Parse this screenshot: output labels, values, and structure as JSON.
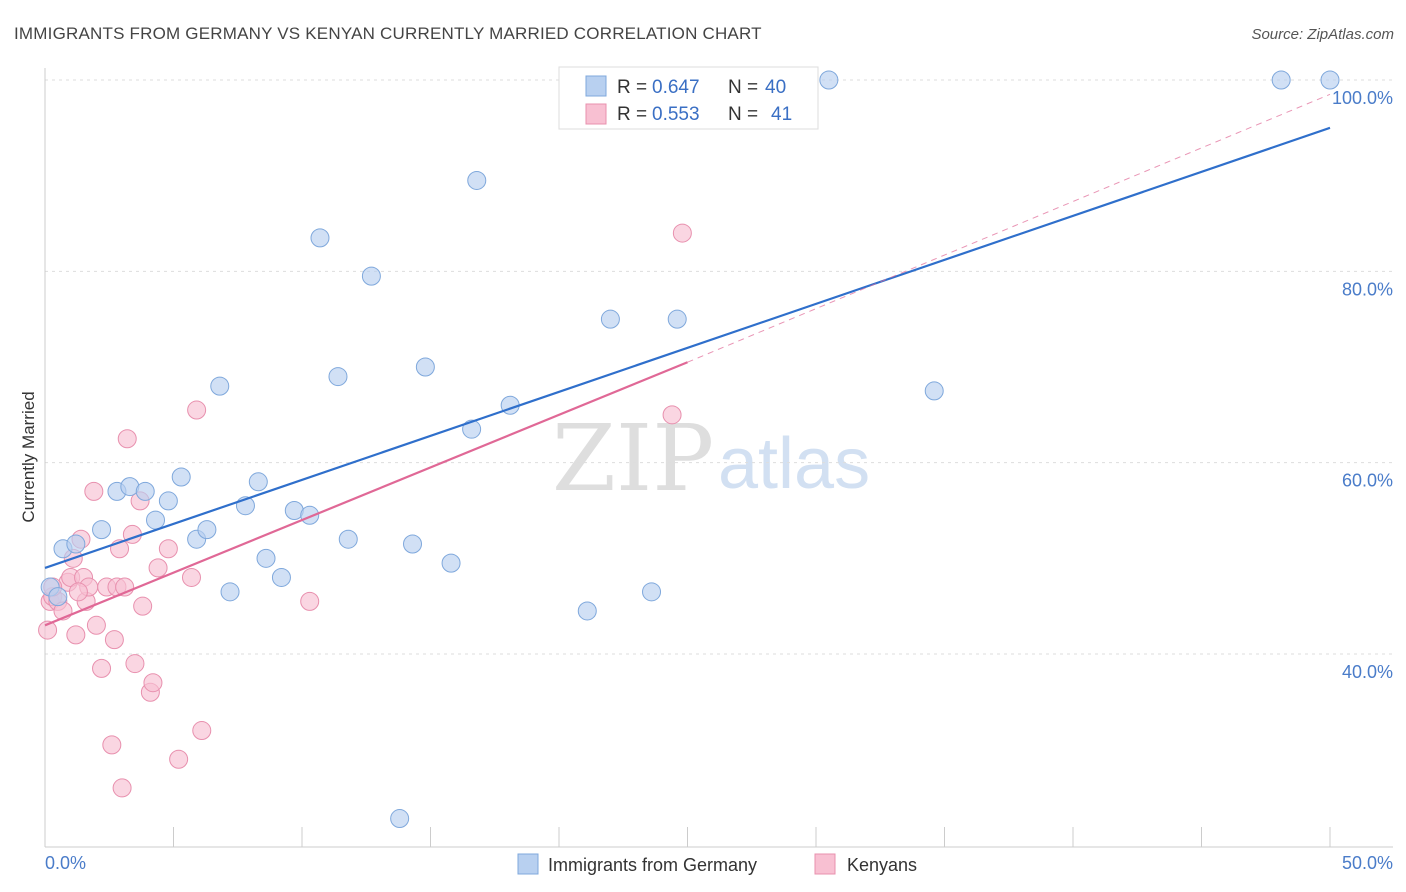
{
  "header": {
    "title": "IMMIGRANTS FROM GERMANY VS KENYAN CURRENTLY MARRIED CORRELATION CHART",
    "source": "Source: ZipAtlas.com"
  },
  "watermark": {
    "part1": "ZIP",
    "part2": "atlas"
  },
  "legend": {
    "rows": [
      {
        "r_label": "R =",
        "r_value": "0.647",
        "n_label": "N =",
        "n_value": "40"
      },
      {
        "r_label": "R =",
        "r_value": "0.553",
        "n_label": "N =",
        "n_value": "41"
      }
    ]
  },
  "colors": {
    "germany_fill": "#b8d0f0",
    "germany_stroke": "#7fa8dc",
    "germany_line": "#2f6fcb",
    "kenyan_fill": "#f8c0d2",
    "kenyan_stroke": "#e890ae",
    "kenyan_line": "#e06896",
    "grid": "#dddddd",
    "axis": "#cccccc"
  },
  "chart_data": {
    "type": "scatter",
    "title": "IMMIGRANTS FROM GERMANY VS KENYAN CURRENTLY MARRIED CORRELATION CHART",
    "xlabel": "",
    "ylabel": "Currently Married",
    "xlim": [
      0,
      50
    ],
    "ylim": [
      21,
      102
    ],
    "x_tick_labels": [
      "0.0%",
      "50.0%"
    ],
    "y_ticks": [
      40,
      60,
      80,
      100
    ],
    "y_tick_labels": [
      "40.0%",
      "60.0%",
      "80.0%",
      "100.0%"
    ],
    "grid": true,
    "legend_position": "top-center",
    "series": [
      {
        "name": "Immigrants from Germany",
        "R": 0.647,
        "N": 40,
        "points": [
          [
            0.2,
            47.0
          ],
          [
            0.5,
            46.0
          ],
          [
            0.7,
            51.0
          ],
          [
            1.2,
            51.5
          ],
          [
            2.2,
            53.0
          ],
          [
            2.8,
            57.0
          ],
          [
            3.3,
            57.5
          ],
          [
            3.9,
            57.0
          ],
          [
            4.3,
            54.0
          ],
          [
            4.8,
            56.0
          ],
          [
            5.3,
            58.5
          ],
          [
            5.9,
            52.0
          ],
          [
            6.3,
            53.0
          ],
          [
            6.8,
            68.0
          ],
          [
            7.2,
            46.5
          ],
          [
            7.8,
            55.5
          ],
          [
            8.3,
            58.0
          ],
          [
            8.6,
            50.0
          ],
          [
            9.2,
            48.0
          ],
          [
            9.7,
            55.0
          ],
          [
            10.3,
            54.5
          ],
          [
            10.7,
            83.5
          ],
          [
            11.4,
            69.0
          ],
          [
            11.8,
            52.0
          ],
          [
            12.7,
            79.5
          ],
          [
            13.8,
            22.8
          ],
          [
            14.3,
            51.5
          ],
          [
            14.8,
            70.0
          ],
          [
            15.8,
            49.5
          ],
          [
            16.6,
            63.5
          ],
          [
            16.8,
            89.5
          ],
          [
            18.1,
            66.0
          ],
          [
            21.1,
            44.5
          ],
          [
            22.0,
            75.0
          ],
          [
            23.6,
            46.5
          ],
          [
            24.6,
            75.0
          ],
          [
            30.5,
            100.0
          ],
          [
            34.6,
            67.5
          ],
          [
            48.1,
            100.0
          ],
          [
            50.0,
            100.0
          ]
        ],
        "trend": {
          "x": [
            0,
            50
          ],
          "y": [
            49.0,
            95.0
          ]
        }
      },
      {
        "name": "Kenyans",
        "R": 0.553,
        "N": 41,
        "points": [
          [
            0.1,
            42.5
          ],
          [
            0.2,
            45.5
          ],
          [
            0.3,
            46.0
          ],
          [
            0.5,
            45.5
          ],
          [
            0.7,
            44.5
          ],
          [
            0.9,
            47.5
          ],
          [
            1.0,
            48.0
          ],
          [
            1.1,
            50.0
          ],
          [
            1.2,
            42.0
          ],
          [
            1.4,
            52.0
          ],
          [
            1.5,
            48.0
          ],
          [
            1.6,
            45.5
          ],
          [
            1.7,
            47.0
          ],
          [
            1.9,
            57.0
          ],
          [
            2.0,
            43.0
          ],
          [
            2.2,
            38.5
          ],
          [
            2.4,
            47.0
          ],
          [
            2.6,
            30.5
          ],
          [
            2.7,
            41.5
          ],
          [
            2.8,
            47.0
          ],
          [
            2.9,
            51.0
          ],
          [
            3.0,
            26.0
          ],
          [
            3.1,
            47.0
          ],
          [
            3.2,
            62.5
          ],
          [
            3.4,
            52.5
          ],
          [
            3.5,
            39.0
          ],
          [
            3.7,
            56.0
          ],
          [
            3.8,
            45.0
          ],
          [
            4.1,
            36.0
          ],
          [
            4.2,
            37.0
          ],
          [
            4.4,
            49.0
          ],
          [
            4.8,
            51.0
          ],
          [
            5.2,
            29.0
          ],
          [
            5.7,
            48.0
          ],
          [
            5.9,
            65.5
          ],
          [
            6.1,
            32.0
          ],
          [
            10.3,
            45.5
          ],
          [
            24.4,
            65.0
          ],
          [
            24.8,
            84.0
          ],
          [
            0.3,
            47.0
          ],
          [
            1.3,
            46.5
          ]
        ],
        "trend": {
          "x": [
            0,
            25
          ],
          "y": [
            43.0,
            70.5
          ]
        },
        "trend_extension": {
          "x": [
            25,
            50
          ],
          "y": [
            70.5,
            98.5
          ]
        }
      }
    ]
  },
  "bottom_legend": {
    "items": [
      {
        "label": "Immigrants from Germany"
      },
      {
        "label": "Kenyans"
      }
    ]
  }
}
